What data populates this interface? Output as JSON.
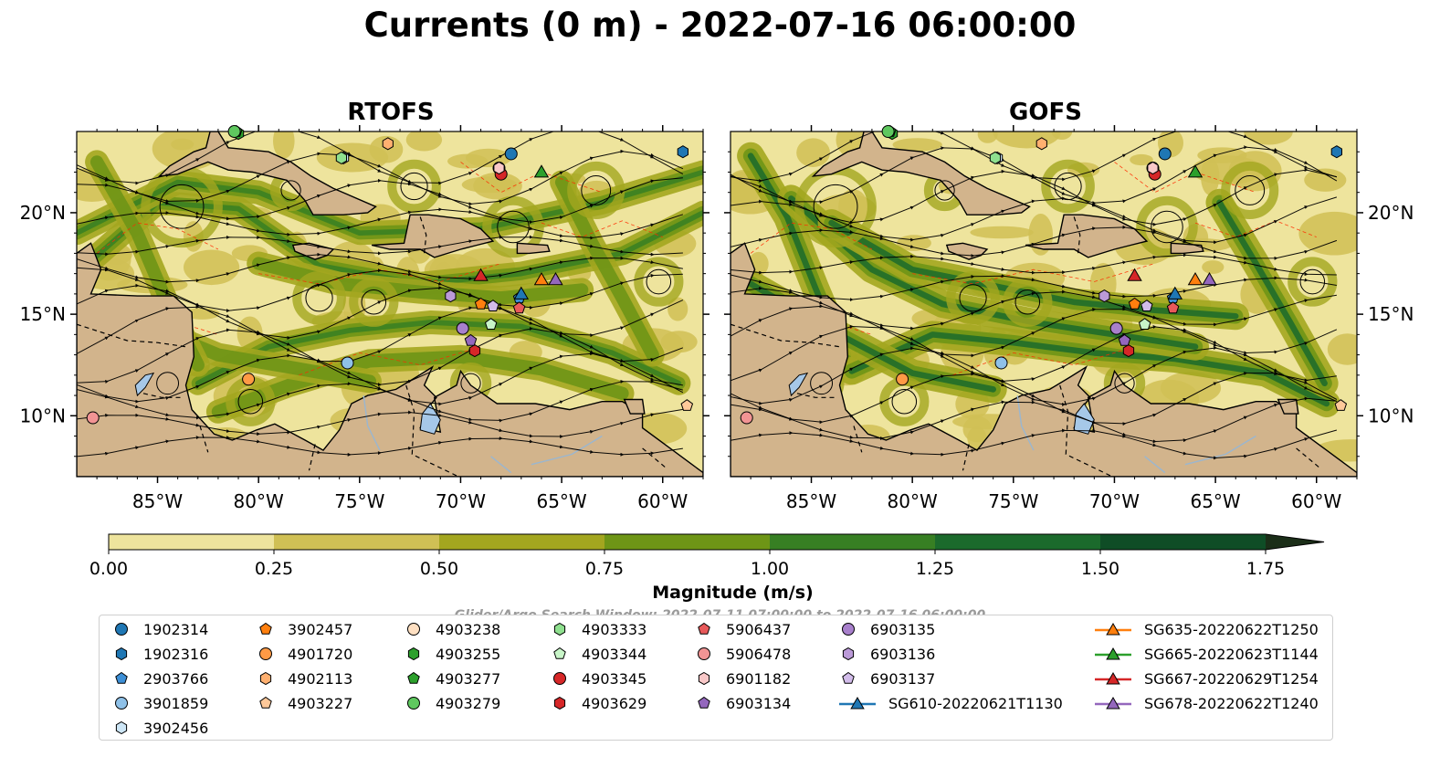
{
  "suptitle": "Currents (0 m) - 2022-07-16 06:00:00",
  "colors": {
    "land": "#d2b48c",
    "lake": "#a6c8e8",
    "river": "#9ab6d0",
    "streamline": "#000000",
    "contour": "#ff2a00",
    "scale": [
      "#eee49d",
      "#d0c055",
      "#a3a61f",
      "#6e9516",
      "#377f23",
      "#1b6a2c",
      "#0f4d26",
      "#1b2e18"
    ]
  },
  "panels": [
    {
      "title": "RTOFS"
    },
    {
      "title": "GOFS"
    }
  ],
  "search_window": "Glider/Argo Search Window: 2022-07-11 07:00:00 to 2022-07-16 06:00:00",
  "colorbar": {
    "label": "Magnitude (m/s)",
    "ticks": [
      "0.00",
      "0.25",
      "0.50",
      "0.75",
      "1.00",
      "1.25",
      "1.50",
      "1.75"
    ]
  },
  "chart_data": {
    "type": "heatmap",
    "title": "Currents (0 m) - 2022-07-16 06:00:00",
    "variable": "Current magnitude",
    "units": "m/s",
    "colorbar_range": [
      0,
      1.75
    ],
    "colorbar_levels": [
      0,
      0.25,
      0.5,
      0.75,
      1.0,
      1.25,
      1.5,
      1.75
    ],
    "colorbar_extend": "max",
    "panels": [
      "RTOFS",
      "GOFS"
    ],
    "xlim": [
      -89,
      -58
    ],
    "ylim": [
      7,
      24
    ],
    "x_ticks": [
      -85,
      -80,
      -75,
      -70,
      -65,
      -60
    ],
    "x_tick_labels": [
      "85°W",
      "80°W",
      "75°W",
      "70°W",
      "65°W",
      "60°W"
    ],
    "y_ticks": [
      10,
      15,
      20
    ],
    "y_tick_labels": [
      "10°N",
      "15°N",
      "20°N"
    ],
    "argo_floats": [
      {
        "id": "1902314",
        "marker": "circle",
        "color": "#1f77b4",
        "lon": -67.5,
        "lat": 22.9
      },
      {
        "id": "1902316",
        "marker": "hexagon",
        "color": "#1f77b4",
        "lon": -59.0,
        "lat": 23.0
      },
      {
        "id": "2903766",
        "marker": "pentagon",
        "color": "#3d8fd6",
        "lon": -67.1,
        "lat": 15.8
      },
      {
        "id": "3901859",
        "marker": "circle",
        "color": "#8fc1e8",
        "lon": -75.6,
        "lat": 12.6
      },
      {
        "id": "3902456",
        "marker": "hexagon",
        "color": "#cde6f6",
        "lon": -75.8,
        "lat": 22.7
      },
      {
        "id": "3902457",
        "marker": "pentagon",
        "color": "#ff7f0e",
        "lon": -69.0,
        "lat": 15.5
      },
      {
        "id": "4901720",
        "marker": "circle",
        "color": "#ff9a45",
        "lon": -80.5,
        "lat": 11.8
      },
      {
        "id": "4902113",
        "marker": "hexagon",
        "color": "#ffb070",
        "lon": -73.6,
        "lat": 23.4
      },
      {
        "id": "4903227",
        "marker": "pentagon",
        "color": "#ffc99a",
        "lon": -58.8,
        "lat": 10.5
      },
      {
        "id": "4903238",
        "marker": "circle",
        "color": "#ffe0c2",
        "lon": -68.1,
        "lat": 22.2
      },
      {
        "id": "4903255",
        "marker": "hexagon",
        "color": "#2ca02c",
        "lon": -81.0,
        "lat": 23.9
      },
      {
        "id": "4903277",
        "marker": "pentagon",
        "color": "#2ca02c",
        "lon": -81.1,
        "lat": 24.0
      },
      {
        "id": "4903279",
        "marker": "circle",
        "color": "#5fc85f",
        "lon": -81.2,
        "lat": 24.0
      },
      {
        "id": "4903333",
        "marker": "hexagon",
        "color": "#8fe08f",
        "lon": -75.9,
        "lat": 22.7
      },
      {
        "id": "4903344",
        "marker": "pentagon",
        "color": "#c8f5c8",
        "lon": -68.5,
        "lat": 14.5
      },
      {
        "id": "4903345",
        "marker": "circle",
        "color": "#d62728",
        "lon": -68.0,
        "lat": 21.9
      },
      {
        "id": "4903629",
        "marker": "hexagon",
        "color": "#d62728",
        "lon": -69.3,
        "lat": 13.2
      },
      {
        "id": "5906437",
        "marker": "pentagon",
        "color": "#e8595a",
        "lon": -67.1,
        "lat": 15.3
      },
      {
        "id": "5906478",
        "marker": "circle",
        "color": "#f29494",
        "lon": -88.2,
        "lat": 9.9
      },
      {
        "id": "6901182",
        "marker": "hexagon",
        "color": "#f9c8c8",
        "lon": -68.1,
        "lat": 22.2
      },
      {
        "id": "6903134",
        "marker": "pentagon",
        "color": "#9467bd",
        "lon": -69.5,
        "lat": 13.7
      },
      {
        "id": "6903135",
        "marker": "circle",
        "color": "#a880cc",
        "lon": -69.9,
        "lat": 14.3
      },
      {
        "id": "6903136",
        "marker": "hexagon",
        "color": "#bb9ad8",
        "lon": -70.5,
        "lat": 15.9
      },
      {
        "id": "6903137",
        "marker": "pentagon",
        "color": "#d2bcea",
        "lon": -68.4,
        "lat": 15.4
      }
    ],
    "gliders": [
      {
        "id": "SG610-20220621T1130",
        "color": "#1f77b4",
        "lon": -67.0,
        "lat": 15.9
      },
      {
        "id": "SG635-20220622T1250",
        "color": "#ff7f0e",
        "lon": -66.0,
        "lat": 16.6
      },
      {
        "id": "SG665-20220623T1144",
        "color": "#2ca02c",
        "lon": -66.0,
        "lat": 21.9
      },
      {
        "id": "SG667-20220629T1254",
        "color": "#d62728",
        "lon": -69.0,
        "lat": 16.8
      },
      {
        "id": "SG678-20220622T1240",
        "color": "#9467bd",
        "lon": -65.3,
        "lat": 16.6
      }
    ]
  }
}
